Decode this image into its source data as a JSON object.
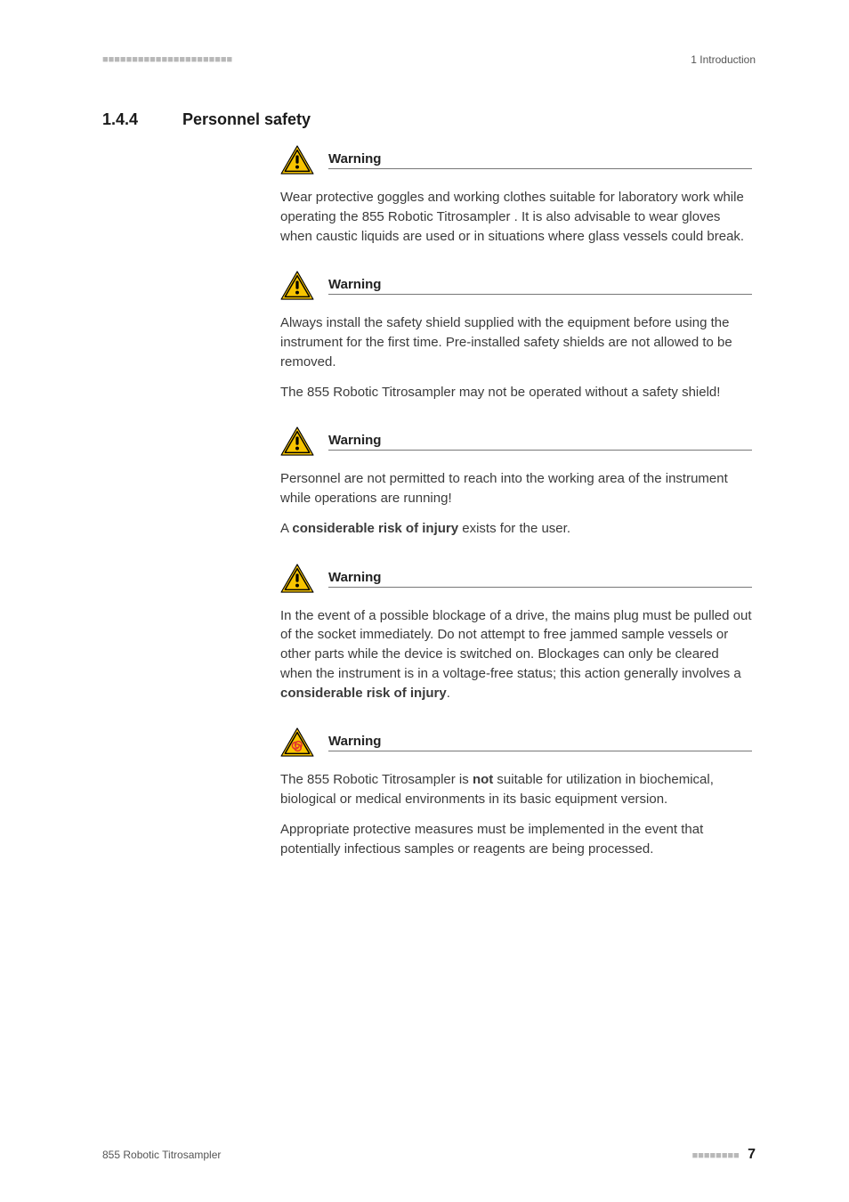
{
  "header": {
    "left_marker": "■■■■■■■■■■■■■■■■■■■■■■",
    "right_text": "1 Introduction"
  },
  "section": {
    "number": "1.4.4",
    "title": "Personnel safety"
  },
  "icons": {
    "warning": {
      "stroke": "#000000",
      "fill_outer": "#f7c400",
      "bang": "#000000"
    },
    "biohazard": {
      "stroke": "#000000",
      "fill_outer": "#f7c400",
      "symbol": "#e03030"
    }
  },
  "warnings": [
    {
      "icon": "warning",
      "title": "Warning",
      "paragraphs": [
        {
          "segments": [
            {
              "t": "Wear protective goggles and working clothes suitable for laboratory work while operating the 855 Robotic Titrosampler . It is also advisable to wear gloves when caustic liquids are used or in situations where glass vessels could break."
            }
          ]
        }
      ]
    },
    {
      "icon": "warning",
      "title": "Warning",
      "paragraphs": [
        {
          "segments": [
            {
              "t": "Always install the safety shield supplied with the equipment before using the instrument for the first time. Pre-installed safety shields are not allowed to be removed."
            }
          ]
        },
        {
          "segments": [
            {
              "t": "The 855 Robotic Titrosampler  may not be operated without a safety shield!"
            }
          ]
        }
      ]
    },
    {
      "icon": "warning",
      "title": "Warning",
      "paragraphs": [
        {
          "segments": [
            {
              "t": "Personnel are not permitted to reach into the working area of the instrument while operations are running!"
            }
          ]
        },
        {
          "segments": [
            {
              "t": "A "
            },
            {
              "t": "considerable risk of injury",
              "b": true
            },
            {
              "t": " exists for the user."
            }
          ]
        }
      ]
    },
    {
      "icon": "warning",
      "title": "Warning",
      "paragraphs": [
        {
          "segments": [
            {
              "t": "In the event of a possible blockage of a drive, the mains plug must be pulled out of the socket immediately. Do not attempt to free jammed sample vessels or other parts while the device is switched on. Blockages can only be cleared when the instrument is in a voltage-free status; this action generally involves a "
            },
            {
              "t": "considerable risk of injury",
              "b": true
            },
            {
              "t": "."
            }
          ]
        }
      ]
    },
    {
      "icon": "biohazard",
      "title": "Warning",
      "paragraphs": [
        {
          "segments": [
            {
              "t": "The 855 Robotic Titrosampler  is "
            },
            {
              "t": "not",
              "b": true
            },
            {
              "t": " suitable for utilization in biochemical, biological or medical environments in its basic equipment version."
            }
          ]
        },
        {
          "segments": [
            {
              "t": "Appropriate protective measures must be implemented in the event that potentially infectious samples or reagents are being processed."
            }
          ]
        }
      ]
    }
  ],
  "footer": {
    "left_text": "855 Robotic Titrosampler",
    "right_marker": "■■■■■■■■",
    "page_number": "7"
  }
}
